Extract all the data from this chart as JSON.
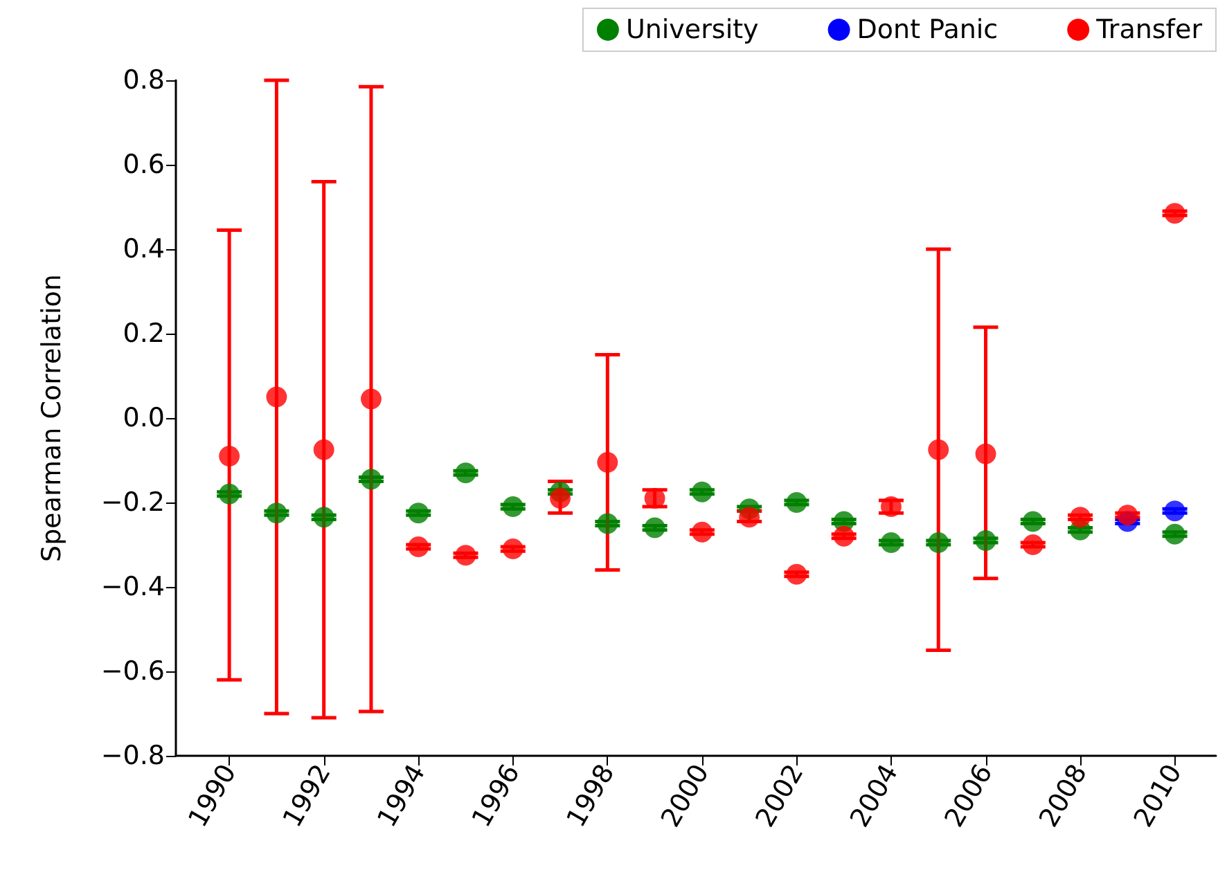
{
  "chart_data": {
    "type": "scatter",
    "ylabel": "Spearman Correlation",
    "x": [
      1990,
      1991,
      1992,
      1993,
      1994,
      1995,
      1996,
      1997,
      1998,
      1999,
      2000,
      2001,
      2002,
      2003,
      2004,
      2005,
      2006,
      2007,
      2008,
      2009,
      2010
    ],
    "series": [
      {
        "name": "University",
        "color": "#008000",
        "values": [
          -0.18,
          -0.225,
          -0.235,
          -0.145,
          -0.225,
          -0.13,
          -0.21,
          -0.175,
          -0.25,
          -0.26,
          -0.175,
          -0.215,
          -0.2,
          -0.245,
          -0.295,
          -0.295,
          -0.29,
          -0.245,
          -0.265,
          null,
          -0.275
        ],
        "errors": [
          0.005,
          0.005,
          0.005,
          0.005,
          0.005,
          0.005,
          0.005,
          0.005,
          0.005,
          0.005,
          0.005,
          0.005,
          0.005,
          0.005,
          0.005,
          0.005,
          0.005,
          0.005,
          0.005,
          null,
          0.005
        ]
      },
      {
        "name": "Dont Panic",
        "color": "#0000ff",
        "values": [
          null,
          null,
          null,
          null,
          null,
          null,
          null,
          null,
          null,
          null,
          null,
          null,
          null,
          null,
          null,
          null,
          null,
          null,
          null,
          -0.245,
          -0.22
        ],
        "errors": [
          null,
          null,
          null,
          null,
          null,
          null,
          null,
          null,
          null,
          null,
          null,
          null,
          null,
          null,
          null,
          null,
          null,
          null,
          null,
          0.005,
          0.005
        ]
      },
      {
        "name": "Transfer",
        "color": "#ff0000",
        "values": [
          -0.09,
          0.05,
          -0.075,
          0.045,
          -0.305,
          -0.325,
          -0.31,
          -0.19,
          -0.105,
          -0.19,
          -0.27,
          -0.235,
          -0.37,
          -0.28,
          -0.21,
          -0.075,
          -0.085,
          -0.3,
          -0.235,
          -0.23,
          0.485
        ],
        "errors": [
          [
            -0.62,
            0.445
          ],
          [
            -0.7,
            0.8
          ],
          [
            -0.71,
            0.56
          ],
          [
            -0.695,
            0.785
          ],
          0.005,
          0.005,
          0.005,
          [
            -0.225,
            -0.15
          ],
          [
            -0.36,
            0.15
          ],
          [
            -0.21,
            -0.17
          ],
          0.005,
          [
            -0.245,
            -0.22
          ],
          0.005,
          0.005,
          [
            -0.225,
            -0.195
          ],
          [
            -0.55,
            0.4
          ],
          [
            -0.38,
            0.215
          ],
          0.005,
          0.005,
          0.005,
          0.005
        ]
      }
    ],
    "xlim": [
      1988.87,
      2010.87
    ],
    "xticks": [
      1990,
      1992,
      1994,
      1996,
      1998,
      2000,
      2002,
      2004,
      2006,
      2008,
      2010
    ],
    "ylim": [
      -0.8,
      0.8
    ],
    "yticks": [
      {
        "value": -0.8,
        "label": "−0.8"
      },
      {
        "value": -0.6,
        "label": "−0.6"
      },
      {
        "value": -0.4,
        "label": "−0.4"
      },
      {
        "value": -0.2,
        "label": "−0.2"
      },
      {
        "value": 0,
        "label": "0.0"
      },
      {
        "value": 0.2,
        "label": "0.2"
      },
      {
        "value": 0.4,
        "label": "0.4"
      },
      {
        "value": 0.6,
        "label": "0.6"
      },
      {
        "value": 0.8,
        "label": "0.8"
      }
    ],
    "grid": false,
    "legend": "top",
    "marker": "circle"
  }
}
